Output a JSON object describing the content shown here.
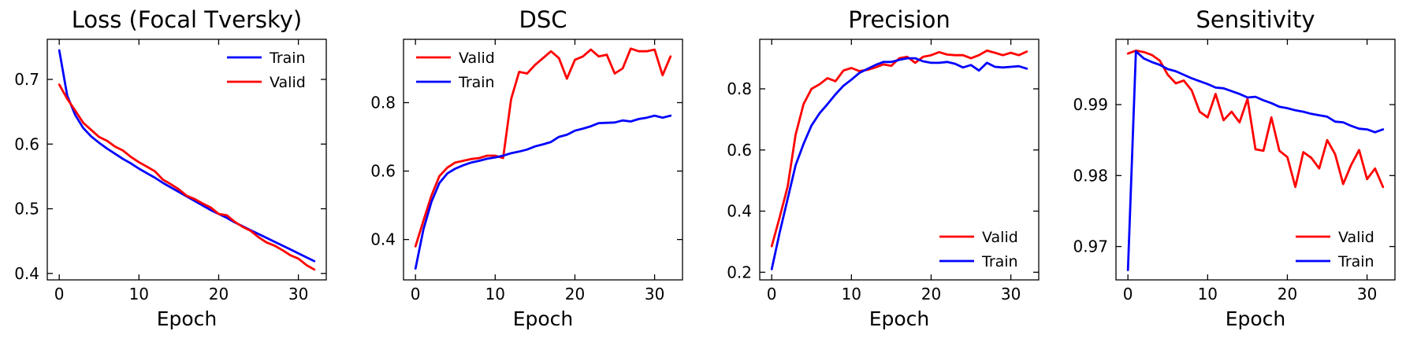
{
  "chart_data": [
    {
      "type": "line",
      "title": "Loss (Focal Tversky)",
      "xlabel": "Epoch",
      "ylabel": "",
      "xlim": [
        -1.5,
        33.5
      ],
      "ylim": [
        0.39,
        0.762
      ],
      "xticks": [
        0,
        10,
        20,
        30
      ],
      "yticks": [
        0.4,
        0.5,
        0.6,
        0.7
      ],
      "ytick_labels": [
        "0.4",
        "0.5",
        "0.6",
        "0.7"
      ],
      "legend": "top-right",
      "x": [
        0,
        1,
        2,
        3,
        4,
        5,
        6,
        7,
        8,
        9,
        10,
        11,
        12,
        13,
        14,
        15,
        16,
        17,
        18,
        19,
        20,
        21,
        22,
        23,
        24,
        25,
        26,
        27,
        28,
        29,
        30,
        31,
        32
      ],
      "series": [
        {
          "name": "Train",
          "color": "#0000ff",
          "values": [
            0.745,
            0.675,
            0.645,
            0.625,
            0.612,
            0.602,
            0.593,
            0.585,
            0.577,
            0.57,
            0.562,
            0.555,
            0.548,
            0.54,
            0.533,
            0.526,
            0.519,
            0.512,
            0.505,
            0.498,
            0.492,
            0.486,
            0.479,
            0.473,
            0.467,
            0.461,
            0.455,
            0.449,
            0.443,
            0.437,
            0.431,
            0.425,
            0.419
          ]
        },
        {
          "name": "Valid",
          "color": "#ff0000",
          "values": [
            0.692,
            0.67,
            0.652,
            0.633,
            0.622,
            0.611,
            0.605,
            0.596,
            0.59,
            0.58,
            0.572,
            0.565,
            0.558,
            0.545,
            0.538,
            0.53,
            0.52,
            0.515,
            0.508,
            0.502,
            0.492,
            0.49,
            0.48,
            0.472,
            0.466,
            0.456,
            0.448,
            0.443,
            0.436,
            0.428,
            0.423,
            0.413,
            0.406
          ]
        }
      ]
    },
    {
      "type": "line",
      "title": "DSC",
      "xlabel": "Epoch",
      "ylabel": "",
      "xlim": [
        -1.5,
        33.5
      ],
      "ylim": [
        0.282,
        0.985
      ],
      "xticks": [
        0,
        10,
        20,
        30
      ],
      "yticks": [
        0.4,
        0.6,
        0.8
      ],
      "ytick_labels": [
        "0.4",
        "0.6",
        "0.8"
      ],
      "legend": "top-left",
      "x": [
        0,
        1,
        2,
        3,
        4,
        5,
        6,
        7,
        8,
        9,
        10,
        11,
        12,
        13,
        14,
        15,
        16,
        17,
        18,
        19,
        20,
        21,
        22,
        23,
        24,
        25,
        26,
        27,
        28,
        29,
        30,
        31,
        32
      ],
      "series": [
        {
          "name": "Valid",
          "color": "#ff0000",
          "values": [
            0.38,
            0.455,
            0.528,
            0.585,
            0.61,
            0.625,
            0.63,
            0.635,
            0.638,
            0.645,
            0.645,
            0.638,
            0.81,
            0.89,
            0.885,
            0.91,
            0.93,
            0.95,
            0.93,
            0.87,
            0.925,
            0.935,
            0.955,
            0.935,
            0.94,
            0.885,
            0.9,
            0.958,
            0.95,
            0.95,
            0.955,
            0.88,
            0.935
          ]
        },
        {
          "name": "Train",
          "color": "#0000ff",
          "values": [
            0.315,
            0.43,
            0.51,
            0.565,
            0.593,
            0.607,
            0.617,
            0.625,
            0.63,
            0.636,
            0.64,
            0.645,
            0.652,
            0.657,
            0.663,
            0.672,
            0.678,
            0.685,
            0.7,
            0.706,
            0.718,
            0.724,
            0.731,
            0.74,
            0.741,
            0.742,
            0.748,
            0.745,
            0.752,
            0.756,
            0.762,
            0.756,
            0.762
          ]
        }
      ]
    },
    {
      "type": "line",
      "title": "Precision",
      "xlabel": "Epoch",
      "ylabel": "",
      "xlim": [
        -1.5,
        33.5
      ],
      "ylim": [
        0.175,
        0.962
      ],
      "xticks": [
        0,
        10,
        20,
        30
      ],
      "yticks": [
        0.2,
        0.4,
        0.6,
        0.8
      ],
      "ytick_labels": [
        "0.2",
        "0.4",
        "0.6",
        "0.8"
      ],
      "legend": "bottom-right",
      "x": [
        0,
        1,
        2,
        3,
        4,
        5,
        6,
        7,
        8,
        9,
        10,
        11,
        12,
        13,
        14,
        15,
        16,
        17,
        18,
        19,
        20,
        21,
        22,
        23,
        24,
        25,
        26,
        27,
        28,
        29,
        30,
        31,
        32
      ],
      "series": [
        {
          "name": "Valid",
          "color": "#ff0000",
          "values": [
            0.285,
            0.38,
            0.48,
            0.65,
            0.75,
            0.8,
            0.815,
            0.835,
            0.825,
            0.86,
            0.868,
            0.858,
            0.862,
            0.87,
            0.88,
            0.875,
            0.9,
            0.905,
            0.885,
            0.905,
            0.91,
            0.92,
            0.912,
            0.91,
            0.91,
            0.9,
            0.91,
            0.925,
            0.918,
            0.91,
            0.918,
            0.91,
            0.922
          ]
        },
        {
          "name": "Train",
          "color": "#0000ff",
          "values": [
            0.21,
            0.33,
            0.44,
            0.55,
            0.62,
            0.68,
            0.72,
            0.75,
            0.782,
            0.81,
            0.83,
            0.852,
            0.865,
            0.878,
            0.888,
            0.888,
            0.895,
            0.9,
            0.9,
            0.89,
            0.885,
            0.885,
            0.888,
            0.882,
            0.87,
            0.878,
            0.86,
            0.885,
            0.872,
            0.87,
            0.872,
            0.874,
            0.866
          ]
        }
      ]
    },
    {
      "type": "line",
      "title": "Sensitivity",
      "xlabel": "Epoch",
      "ylabel": "",
      "xlim": [
        -1.5,
        33.5
      ],
      "ylim": [
        0.9653,
        0.9992
      ],
      "xticks": [
        0,
        10,
        20,
        30
      ],
      "yticks": [
        0.97,
        0.98,
        0.99
      ],
      "ytick_labels": [
        "0.97",
        "0.98",
        "0.99"
      ],
      "legend": "bottom-right",
      "x": [
        0,
        1,
        2,
        3,
        4,
        5,
        6,
        7,
        8,
        9,
        10,
        11,
        12,
        13,
        14,
        15,
        16,
        17,
        18,
        19,
        20,
        21,
        22,
        23,
        24,
        25,
        26,
        27,
        28,
        29,
        30,
        31,
        32
      ],
      "series": [
        {
          "name": "Valid",
          "color": "#ff0000",
          "values": [
            0.9972,
            0.9976,
            0.9974,
            0.997,
            0.9962,
            0.9942,
            0.993,
            0.9934,
            0.992,
            0.989,
            0.9882,
            0.9915,
            0.9878,
            0.989,
            0.9875,
            0.9908,
            0.9837,
            0.9835,
            0.9882,
            0.9835,
            0.9826,
            0.9784,
            0.9833,
            0.9825,
            0.981,
            0.985,
            0.983,
            0.9788,
            0.9815,
            0.9836,
            0.9795,
            0.981,
            0.9784
          ]
        },
        {
          "name": "Train",
          "color": "#0000ff",
          "values": [
            0.9667,
            0.9975,
            0.9965,
            0.996,
            0.9956,
            0.995,
            0.9947,
            0.9942,
            0.9937,
            0.9933,
            0.9929,
            0.9924,
            0.9923,
            0.9919,
            0.9915,
            0.991,
            0.9911,
            0.9906,
            0.9902,
            0.9897,
            0.9895,
            0.9892,
            0.989,
            0.9887,
            0.9885,
            0.9883,
            0.9876,
            0.9875,
            0.987,
            0.9866,
            0.9865,
            0.9861,
            0.9865
          ]
        }
      ]
    }
  ]
}
